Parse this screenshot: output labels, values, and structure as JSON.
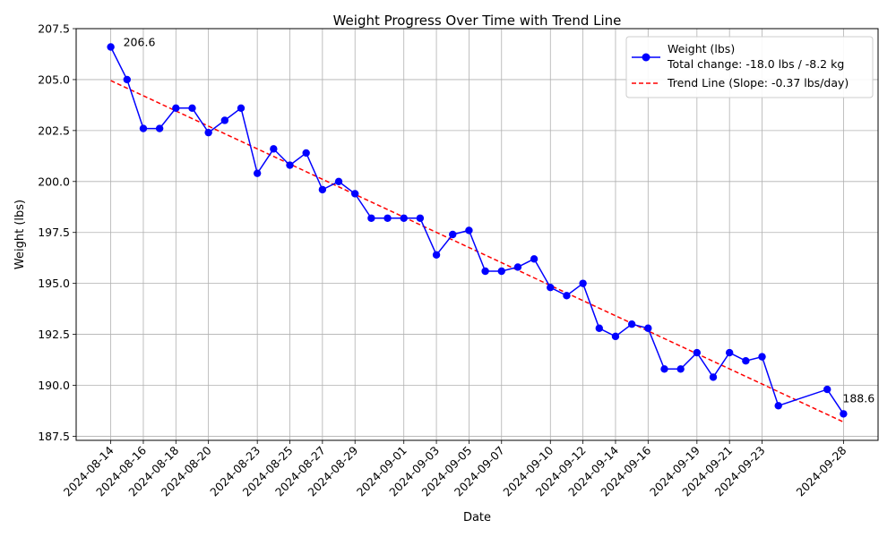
{
  "chart_data": {
    "type": "line",
    "title": "Weight Progress Over Time with Trend Line",
    "xlabel": "Date",
    "ylabel": "Weight (lbs)",
    "ylim": [
      187.3,
      207.5
    ],
    "xlim": [
      "2024-08-11T21:00",
      "2024-09-30T03:00"
    ],
    "grid": true,
    "legend_position": "top-right",
    "x_ticks": [
      "2024-08-14",
      "2024-08-16",
      "2024-08-18",
      "2024-08-20",
      "2024-08-23",
      "2024-08-25",
      "2024-08-27",
      "2024-08-29",
      "2024-09-01",
      "2024-09-03",
      "2024-09-05",
      "2024-09-07",
      "2024-09-10",
      "2024-09-12",
      "2024-09-14",
      "2024-09-16",
      "2024-09-19",
      "2024-09-21",
      "2024-09-23",
      "2024-09-28"
    ],
    "y_ticks": [
      "187.5",
      "190.0",
      "192.5",
      "195.0",
      "197.5",
      "200.0",
      "202.5",
      "205.0",
      "207.5"
    ],
    "series": [
      {
        "name": "Weight (lbs)",
        "legend_line2": "Total change: -18.0 lbs / -8.2 kg",
        "color": "#0000ff",
        "marker": "circle",
        "x": [
          "2024-08-14T00:00",
          "2024-08-15T00:00",
          "2024-08-16T00:00",
          "2024-08-17T00:00",
          "2024-08-18T00:00",
          "2024-08-19T00:00",
          "2024-08-20T00:00",
          "2024-08-21T00:00",
          "2024-08-22T00:00",
          "2024-08-23T00:00",
          "2024-08-24T00:00",
          "2024-08-25T00:00",
          "2024-08-26T00:00",
          "2024-08-27T00:00",
          "2024-08-28T00:00",
          "2024-08-29T00:00",
          "2024-08-30T00:00",
          "2024-08-31T00:00",
          "2024-09-01T00:00",
          "2024-09-02T00:00",
          "2024-09-03T00:00",
          "2024-09-04T00:00",
          "2024-09-05T00:00",
          "2024-09-06T00:00",
          "2024-09-07T00:00",
          "2024-09-08T00:00",
          "2024-09-09T00:00",
          "2024-09-10T00:00",
          "2024-09-11T00:00",
          "2024-09-12T00:00",
          "2024-09-13T00:00",
          "2024-09-14T00:00",
          "2024-09-15T00:00",
          "2024-09-16T00:00",
          "2024-09-17T00:00",
          "2024-09-18T00:00",
          "2024-09-19T00:00",
          "2024-09-20T00:00",
          "2024-09-21T00:00",
          "2024-09-22T00:00",
          "2024-09-23T00:00",
          "2024-09-24T00:00",
          "2024-09-27T00:00",
          "2024-09-28T00:00"
        ],
        "values": [
          206.6,
          205.0,
          202.6,
          202.6,
          203.6,
          203.6,
          202.4,
          203.0,
          203.6,
          200.4,
          201.6,
          200.8,
          201.4,
          199.6,
          200.0,
          199.4,
          198.2,
          198.2,
          198.2,
          198.2,
          196.4,
          197.4,
          197.6,
          195.6,
          195.6,
          195.8,
          196.2,
          194.8,
          194.4,
          195.0,
          192.8,
          192.4,
          193.0,
          192.8,
          190.8,
          190.8,
          191.6,
          190.4,
          191.6,
          191.2,
          191.4,
          189.0,
          189.8,
          188.6
        ]
      },
      {
        "name": "Trend Line (Slope: -0.37 lbs/day)",
        "color": "#ff0000",
        "style": "dashed",
        "x": [
          "2024-08-14T00:00",
          "2024-09-28T00:00"
        ],
        "values": [
          204.95,
          188.2
        ]
      }
    ],
    "annotations": [
      {
        "text": "206.6",
        "x": "2024-08-14T00:00",
        "y": 206.6
      },
      {
        "text": "188.6",
        "x": "2024-09-28T00:00",
        "y": 188.6
      }
    ]
  }
}
